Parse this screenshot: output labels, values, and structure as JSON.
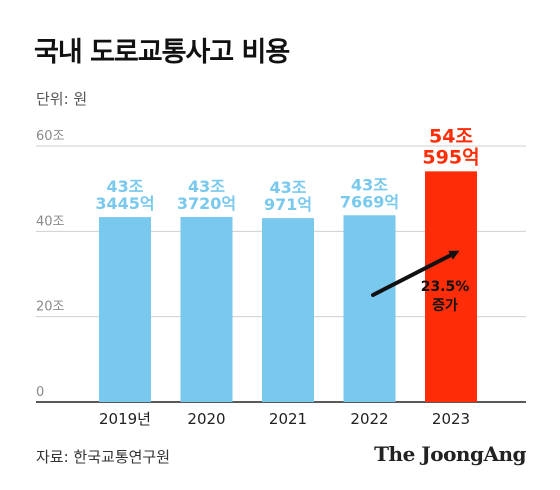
{
  "title": "국내 도로교통사고 비용",
  "unit_label": "단위: 원",
  "source": "자료: 한국교통연구원",
  "brand": "The JoongAng",
  "colors": {
    "bar": "#79c9ee",
    "bar_highlight": "#ff2d07",
    "grid": "#cfcfcf",
    "axis": "#222222",
    "arrow": "#111111"
  },
  "chart_data": {
    "type": "bar",
    "title": "국내 도로교통사고 비용",
    "categories": [
      "2019년",
      "2020",
      "2021",
      "2022",
      "2023"
    ],
    "values": [
      43.3445,
      43.372,
      43.0971,
      43.7669,
      54.0595
    ],
    "value_labels": [
      [
        "43조",
        "3445억"
      ],
      [
        "43조",
        "3720억"
      ],
      [
        "43조",
        "971억"
      ],
      [
        "43조",
        "7669억"
      ],
      [
        "54조",
        "595억"
      ]
    ],
    "highlight_index": 4,
    "ylim": [
      0,
      60
    ],
    "yticks": [
      0,
      20,
      40,
      60
    ],
    "ytick_labels": [
      "0",
      "20조",
      "40조",
      "60조"
    ],
    "grid": true,
    "annotation": {
      "lines": [
        "23.5%",
        "증가"
      ]
    }
  }
}
